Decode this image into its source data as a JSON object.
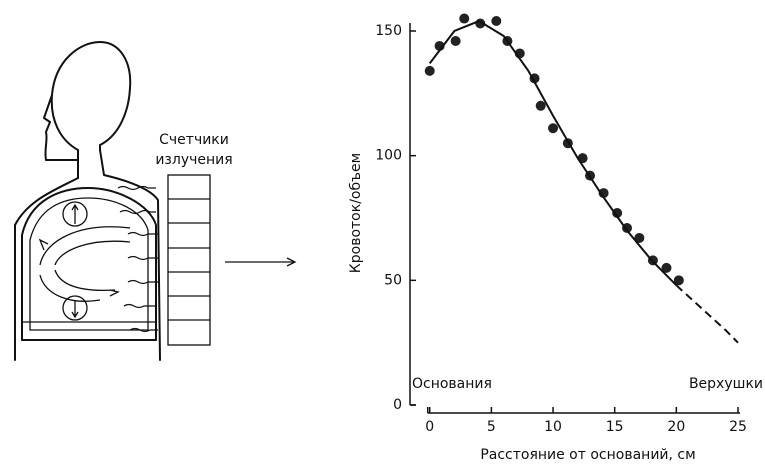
{
  "chart_data": {
    "type": "scatter",
    "y_label": "Кровоток/объем",
    "x_label": "Расстояние от оснований, см",
    "annotations": [
      "Основания",
      "Верхушки"
    ],
    "xlim": [
      -1.6,
      25
    ],
    "ylim": [
      0,
      150
    ],
    "xticks": [
      0,
      5,
      10,
      15,
      20,
      25
    ],
    "yticks": [
      0,
      50,
      100,
      150
    ],
    "series": [
      {
        "type": "scatter",
        "color": "#222222",
        "x": [
          0,
          0.8,
          2.1,
          2.8,
          4.1,
          5.4,
          6.3,
          7.3,
          8.5,
          9,
          10,
          11.2,
          12.4,
          13,
          14.1,
          15.2,
          16,
          17,
          18.1,
          19.2,
          20.2
        ],
        "values": [
          134,
          144,
          146,
          155,
          153,
          154,
          146,
          141,
          131,
          120,
          111,
          105,
          99,
          92,
          85,
          77,
          71,
          67,
          58,
          55,
          50
        ]
      },
      {
        "type": "line",
        "color": "#111111",
        "dashed": false,
        "x": [
          0,
          2,
          4,
          6,
          8,
          10,
          12,
          14,
          16,
          18,
          20
        ],
        "values": [
          137,
          150,
          154,
          148,
          134,
          116,
          99,
          84,
          70,
          58,
          48
        ]
      },
      {
        "type": "line",
        "color": "#111111",
        "dashed": true,
        "x": [
          20,
          22,
          24,
          25
        ],
        "values": [
          48,
          39,
          30,
          25
        ]
      }
    ]
  },
  "diagram": {
    "counter_label": [
      "Счетчики",
      "излучения"
    ]
  }
}
